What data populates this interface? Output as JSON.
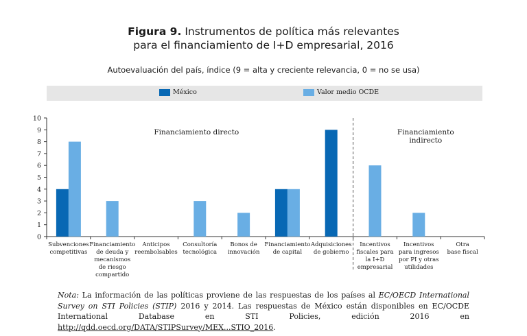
{
  "title": {
    "label": "Figura 9.",
    "line1": "Instrumentos de política más relevantes",
    "line2": "para el financiamiento de I+D empresarial, 2016"
  },
  "subtitle": "Autoevaluación del país, índice (9 = alta y creciente relevancia, 0 = no se usa)",
  "legend": {
    "mexico": "México",
    "oecd": "Valor medio OCDE"
  },
  "colors": {
    "mexico": "#0868b4",
    "oecd": "#69aee4"
  },
  "chart_data": {
    "type": "bar",
    "categories": [
      "Subvenciones competitivas",
      "Financiamiento de deuda y mecanismos de riesgo compartido",
      "Anticipos reembolsables",
      "Consultoría tecnológica",
      "Bonos de innovación",
      "Financiamiento de capital",
      "Adquisiciones de gobierno",
      "Incentivos fiscales para la I+D empresarial",
      "Incentivos para ingresos por PI y otras utilidades",
      "Otra base fiscal"
    ],
    "category_lines": [
      [
        "Subvenciones",
        "competitivas"
      ],
      [
        "Financiamiento",
        "de deuda y",
        "mecanismos",
        "de riesgo",
        "compartido"
      ],
      [
        "Anticipos",
        "reembolsables"
      ],
      [
        "Consultoría",
        "tecnológica"
      ],
      [
        "Bonos de",
        "innovación"
      ],
      [
        "Financiamiento",
        "de capital"
      ],
      [
        "Adquisiciones",
        "de gobierno"
      ],
      [
        "Incentivos",
        "fiscales para",
        "la I+D",
        "empresarial"
      ],
      [
        "Incentivos",
        "para ingresos",
        "por PI y otras",
        "utilidades"
      ],
      [
        "Otra",
        "base fiscal"
      ]
    ],
    "series": [
      {
        "name": "México",
        "values": [
          4,
          0,
          0,
          0,
          0,
          4,
          9,
          0,
          0,
          0
        ]
      },
      {
        "name": "Valor medio OCDE",
        "values": [
          8,
          3,
          0,
          3,
          2,
          4,
          null,
          6,
          2,
          0
        ]
      }
    ],
    "ylim": [
      0,
      10
    ],
    "yticks": [
      0,
      1,
      2,
      3,
      4,
      5,
      6,
      7,
      8,
      9,
      10
    ],
    "annotations": {
      "direct": "Financiamiento directo",
      "indirect_line1": "Financiamiento",
      "indirect_line2": "indirecto"
    }
  },
  "note": {
    "label": "Nota:",
    "text_a": "La información de las políticas proviene de las respuestas de los países al",
    "survey_name": "EC/OECD International Survey on STI Policies (STIP)",
    "text_b": "2016 y 2014. Las respuestas de México están disponibles en EC/OCDE International Database en STI Policies, edición 2016 en",
    "link": "http://qdd.oecd.org/DATA/STIPSurvey/MEX...STIO_2016",
    "end": "."
  }
}
